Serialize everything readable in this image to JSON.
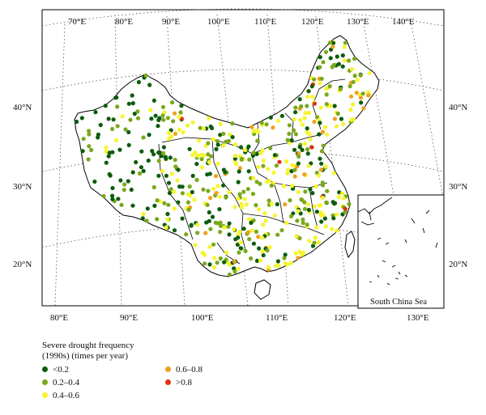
{
  "map": {
    "lon_top_labels": [
      "70°E",
      "80°E",
      "90°E",
      "100°E",
      "110°E",
      "120°E",
      "130°E",
      "140°E"
    ],
    "lon_bottom_labels": [
      "80°E",
      "90°E",
      "100°E",
      "110°E",
      "120°E",
      "130°E"
    ],
    "lat_left_labels": [
      "40°N",
      "30°N",
      "20°N"
    ],
    "lat_right_labels": [
      "40°N",
      "30°N",
      "20°N"
    ],
    "inset_label": "South China Sea",
    "colors": {
      "lt_0_2": "#0d5c0d",
      "b_0_2_0_4": "#7aa81d",
      "b_0_4_0_6": "#f5f530",
      "b_0_6_0_8": "#f0a020",
      "gt_0_8": "#e03010"
    }
  },
  "legend": {
    "title_line1": "Severe drought frequency",
    "title_line2": "(1990s) (times per year)",
    "items": [
      {
        "label": "<0.2",
        "color": "#0d5c0d"
      },
      {
        "label": "0.2–0.4",
        "color": "#7aa81d"
      },
      {
        "label": "0.4–0.6",
        "color": "#f5f530"
      },
      {
        "label": "0.6–0.8",
        "color": "#f0a020"
      },
      {
        "label": ">0.8",
        "color": "#e03010"
      }
    ]
  }
}
